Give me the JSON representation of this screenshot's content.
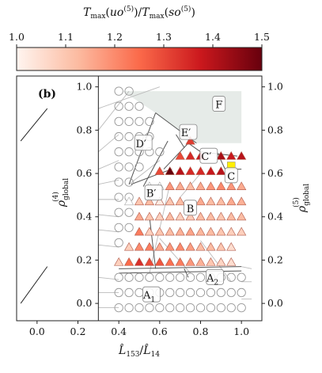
{
  "chart_data": {
    "type": "scatter",
    "panel_label": "(b)",
    "colorbar": {
      "label": "T_max(uo^(5))/T_max(so^(5))",
      "range": [
        1.0,
        1.5
      ],
      "ticks": [
        "1.0",
        "1.1",
        "1.2",
        "1.3",
        "1.4",
        "1.5"
      ],
      "colormap": "reds",
      "colors": [
        "#fff5f0",
        "#fcbba1",
        "#fb6a4a",
        "#cb181d",
        "#67000d"
      ]
    },
    "xlabel": "L̂153/L̂14",
    "ylabel_left": "ρglobal(4)",
    "ylabel_right": "ρglobal(5)",
    "xlim": [
      -0.1,
      1.1
    ],
    "ylim": [
      -0.08,
      1.05
    ],
    "xticks": [
      "0.0",
      "0.2",
      "0.4",
      "0.6",
      "0.8",
      "1.0"
    ],
    "yticks_left": [
      "0.0",
      "0.2",
      "0.4",
      "0.6",
      "0.8",
      "1.0"
    ],
    "yticks_right": [
      "0.0",
      "0.2",
      "0.4",
      "0.6",
      "0.8",
      "1.0"
    ],
    "regions": [
      {
        "name": "A",
        "sub": "1",
        "x": 0.56,
        "y": 0.04
      },
      {
        "name": "A",
        "sub": "2",
        "x": 0.87,
        "y": 0.12
      },
      {
        "name": "B",
        "sub": "",
        "x": 0.75,
        "y": 0.44
      },
      {
        "name": "B",
        "sub": "′",
        "x": 0.57,
        "y": 0.51
      },
      {
        "name": "C",
        "sub": "′",
        "x": 0.84,
        "y": 0.68
      },
      {
        "name": "C",
        "sub": "",
        "x": 0.95,
        "y": 0.59
      },
      {
        "name": "D",
        "sub": "′",
        "x": 0.52,
        "y": 0.74
      },
      {
        "name": "E",
        "sub": "′",
        "x": 0.74,
        "y": 0.79
      },
      {
        "name": "F",
        "sub": "",
        "x": 0.89,
        "y": 0.92
      }
    ],
    "colored_points": [
      {
        "x": 0.4,
        "y": 0.19,
        "v": 1.08
      },
      {
        "x": 0.45,
        "y": 0.19,
        "v": 1.25
      },
      {
        "x": 0.5,
        "y": 0.19,
        "v": 1.34
      },
      {
        "x": 0.55,
        "y": 0.19,
        "v": 1.3
      },
      {
        "x": 0.6,
        "y": 0.19,
        "v": 1.28
      },
      {
        "x": 0.65,
        "y": 0.19,
        "v": 1.24
      },
      {
        "x": 0.7,
        "y": 0.19,
        "v": 1.22
      },
      {
        "x": 0.75,
        "y": 0.19,
        "v": 1.18
      },
      {
        "x": 0.8,
        "y": 0.19,
        "v": 1.14
      },
      {
        "x": 0.85,
        "y": 0.19,
        "v": 1.1
      },
      {
        "x": 0.9,
        "y": 0.19,
        "v": 1.07
      },
      {
        "x": 0.95,
        "y": 0.19,
        "v": 1.05
      },
      {
        "x": 0.45,
        "y": 0.26,
        "v": 1.08
      },
      {
        "x": 0.5,
        "y": 0.26,
        "v": 1.2
      },
      {
        "x": 0.55,
        "y": 0.26,
        "v": 1.22
      },
      {
        "x": 0.6,
        "y": 0.26,
        "v": 1.15
      },
      {
        "x": 0.65,
        "y": 0.26,
        "v": 1.18
      },
      {
        "x": 0.7,
        "y": 0.26,
        "v": 1.2
      },
      {
        "x": 0.75,
        "y": 0.26,
        "v": 1.17
      },
      {
        "x": 0.8,
        "y": 0.26,
        "v": 1.12
      },
      {
        "x": 0.85,
        "y": 0.26,
        "v": 1.12
      },
      {
        "x": 0.9,
        "y": 0.26,
        "v": 1.1
      },
      {
        "x": 0.95,
        "y": 0.26,
        "v": 1.05
      },
      {
        "x": 0.5,
        "y": 0.33,
        "v": 1.22
      },
      {
        "x": 0.55,
        "y": 0.33,
        "v": 1.08
      },
      {
        "x": 0.6,
        "y": 0.33,
        "v": 1.1
      },
      {
        "x": 0.65,
        "y": 0.33,
        "v": 1.12
      },
      {
        "x": 0.7,
        "y": 0.33,
        "v": 1.14
      },
      {
        "x": 0.75,
        "y": 0.33,
        "v": 1.16
      },
      {
        "x": 0.8,
        "y": 0.33,
        "v": 1.13
      },
      {
        "x": 0.85,
        "y": 0.33,
        "v": 1.12
      },
      {
        "x": 0.9,
        "y": 0.33,
        "v": 1.1
      },
      {
        "x": 0.95,
        "y": 0.33,
        "v": 1.08
      },
      {
        "x": 1.0,
        "y": 0.33,
        "v": 1.08
      },
      {
        "x": 0.5,
        "y": 0.4,
        "v": 1.15
      },
      {
        "x": 0.55,
        "y": 0.4,
        "v": 1.1
      },
      {
        "x": 0.6,
        "y": 0.4,
        "v": 1.08
      },
      {
        "x": 0.65,
        "y": 0.4,
        "v": 1.12
      },
      {
        "x": 0.7,
        "y": 0.4,
        "v": 1.08
      },
      {
        "x": 0.75,
        "y": 0.4,
        "v": 1.09
      },
      {
        "x": 0.8,
        "y": 0.4,
        "v": 1.12
      },
      {
        "x": 0.85,
        "y": 0.4,
        "v": 1.12
      },
      {
        "x": 0.9,
        "y": 0.4,
        "v": 1.1
      },
      {
        "x": 0.95,
        "y": 0.4,
        "v": 1.12
      },
      {
        "x": 1.0,
        "y": 0.4,
        "v": 1.12
      },
      {
        "x": 0.5,
        "y": 0.47,
        "v": 1.1
      },
      {
        "x": 0.55,
        "y": 0.47,
        "v": 1.12
      },
      {
        "x": 0.6,
        "y": 0.47,
        "v": 1.02
      },
      {
        "x": 0.65,
        "y": 0.47,
        "v": 1.1
      },
      {
        "x": 0.7,
        "y": 0.47,
        "v": 1.12
      },
      {
        "x": 0.8,
        "y": 0.47,
        "v": 1.15
      },
      {
        "x": 0.85,
        "y": 0.47,
        "v": 1.12
      },
      {
        "x": 0.9,
        "y": 0.47,
        "v": 1.12
      },
      {
        "x": 0.95,
        "y": 0.47,
        "v": 1.15
      },
      {
        "x": 1.0,
        "y": 0.47,
        "v": 1.14
      },
      {
        "x": 0.65,
        "y": 0.54,
        "v": 1.18
      },
      {
        "x": 0.7,
        "y": 0.54,
        "v": 1.15
      },
      {
        "x": 0.75,
        "y": 0.54,
        "v": 1.12
      },
      {
        "x": 0.8,
        "y": 0.54,
        "v": 1.15
      },
      {
        "x": 0.85,
        "y": 0.54,
        "v": 1.18
      },
      {
        "x": 0.9,
        "y": 0.54,
        "v": 1.2
      },
      {
        "x": 0.95,
        "y": 0.54,
        "v": 1.18
      },
      {
        "x": 1.0,
        "y": 0.54,
        "v": 1.15
      },
      {
        "x": 0.6,
        "y": 0.61,
        "v": 1.3
      },
      {
        "x": 0.65,
        "y": 0.61,
        "v": 1.5
      },
      {
        "x": 0.7,
        "y": 0.61,
        "v": 1.4
      },
      {
        "x": 0.75,
        "y": 0.61,
        "v": 1.35
      },
      {
        "x": 0.8,
        "y": 0.61,
        "v": 1.35
      },
      {
        "x": 0.85,
        "y": 0.61,
        "v": 1.38
      },
      {
        "x": 0.9,
        "y": 0.61,
        "v": 1.4
      },
      {
        "x": 0.7,
        "y": 0.68,
        "v": 1.3
      },
      {
        "x": 0.75,
        "y": 0.68,
        "v": 1.35
      },
      {
        "x": 0.8,
        "y": 0.68,
        "v": 1.38
      },
      {
        "x": 0.9,
        "y": 0.68,
        "v": 1.42
      },
      {
        "x": 0.95,
        "y": 0.68,
        "v": 1.38
      },
      {
        "x": 1.0,
        "y": 0.68,
        "v": 1.4
      },
      {
        "x": 0.75,
        "y": 0.75,
        "v": 1.32
      }
    ],
    "highlight_point": {
      "x": 0.95,
      "y": 0.635,
      "color": "#ffee00"
    }
  }
}
